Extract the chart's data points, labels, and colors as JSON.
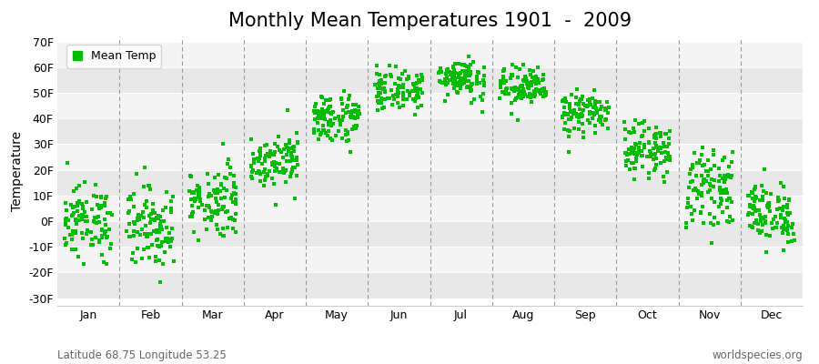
{
  "title": "Monthly Mean Temperatures 1901  -  2009",
  "ylabel": "Temperature",
  "footnote_left": "Latitude 68.75 Longitude 53.25",
  "footnote_right": "worldspecies.org",
  "legend_label": "Mean Temp",
  "dot_color": "#00bb00",
  "months": [
    "Jan",
    "Feb",
    "Mar",
    "Apr",
    "May",
    "Jun",
    "Jul",
    "Aug",
    "Sep",
    "Oct",
    "Nov",
    "Dec"
  ],
  "yticks": [
    -30,
    -20,
    -10,
    0,
    10,
    20,
    30,
    40,
    50,
    60,
    70
  ],
  "ylim": [
    -33,
    72
  ],
  "xlim": [
    0,
    12
  ],
  "mean_temps_f": [
    0,
    -2,
    8,
    24,
    40,
    51,
    56,
    52,
    42,
    28,
    13,
    3
  ],
  "std_temps_f": [
    7,
    8,
    7,
    5,
    5,
    4,
    4,
    4,
    4,
    5,
    7,
    6
  ],
  "n_years": 109,
  "bg_color": "#ffffff",
  "band_colors": [
    "#e8e8e8",
    "#f4f4f4"
  ],
  "title_fontsize": 15,
  "axis_label_fontsize": 10,
  "tick_fontsize": 9,
  "footnote_fontsize": 8.5
}
